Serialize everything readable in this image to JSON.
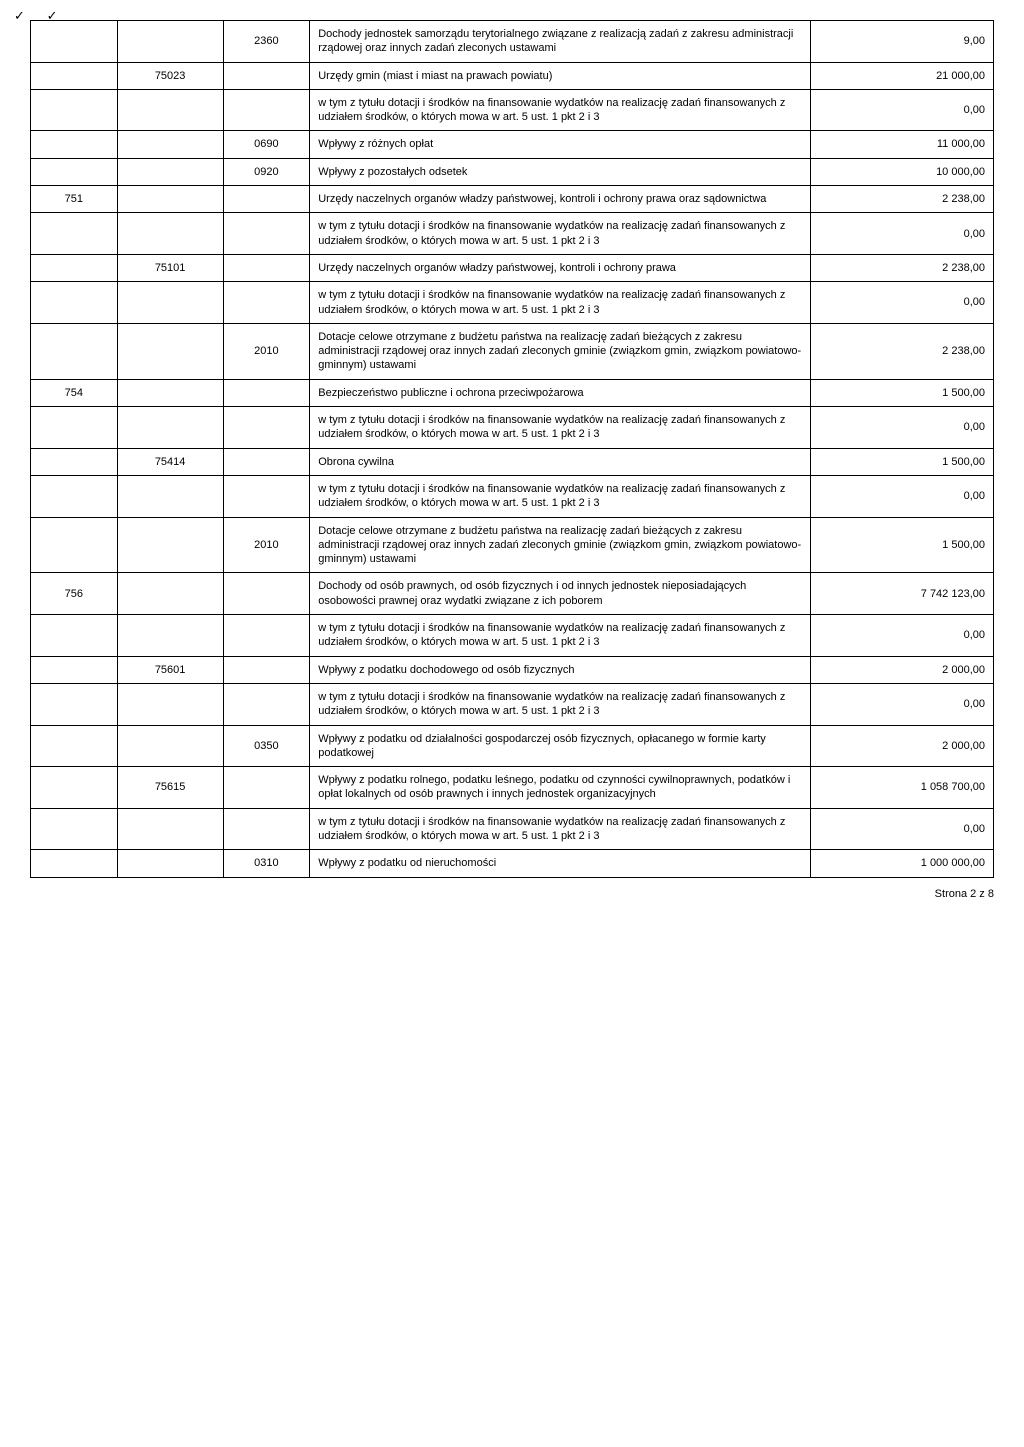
{
  "tick1": "✓",
  "tick2": "✓",
  "rows": [
    {
      "a": "",
      "b": "",
      "c": "2360",
      "d": "Dochody jednostek samorządu terytorialnego związane z realizacją zadań z zakresu administracji rządowej oraz innych zadań zleconych ustawami",
      "e": "9,00"
    },
    {
      "a": "",
      "b": "75023",
      "c": "",
      "d": "Urzędy gmin (miast i miast na prawach powiatu)",
      "e": "21 000,00"
    },
    {
      "a": "",
      "b": "",
      "c": "",
      "d": "w tym z tytułu dotacji i środków na finansowanie wydatków na realizację zadań finansowanych z udziałem środków, o których mowa w art. 5 ust. 1 pkt 2 i 3",
      "e": "0,00"
    },
    {
      "a": "",
      "b": "",
      "c": "0690",
      "d": "Wpływy z różnych opłat",
      "e": "11 000,00"
    },
    {
      "a": "",
      "b": "",
      "c": "0920",
      "d": "Wpływy z pozostałych odsetek",
      "e": "10 000,00"
    },
    {
      "a": "751",
      "b": "",
      "c": "",
      "d": "Urzędy naczelnych organów władzy państwowej, kontroli i ochrony prawa oraz sądownictwa",
      "e": "2 238,00"
    },
    {
      "a": "",
      "b": "",
      "c": "",
      "d": "w tym z tytułu dotacji i środków na finansowanie wydatków na realizację zadań finansowanych z udziałem środków, o których mowa w art. 5 ust. 1 pkt 2 i 3",
      "e": "0,00"
    },
    {
      "a": "",
      "b": "75101",
      "c": "",
      "d": "Urzędy naczelnych organów władzy państwowej, kontroli i ochrony prawa",
      "e": "2 238,00"
    },
    {
      "a": "",
      "b": "",
      "c": "",
      "d": "w tym z tytułu dotacji i środków na finansowanie wydatków na realizację zadań finansowanych z udziałem środków, o których mowa w art. 5 ust. 1 pkt 2 i 3",
      "e": "0,00"
    },
    {
      "a": "",
      "b": "",
      "c": "2010",
      "d": "Dotacje celowe otrzymane z budżetu państwa na realizację zadań bieżących z zakresu administracji rządowej oraz innych zadań zleconych gminie (związkom gmin, związkom powiatowo-gminnym) ustawami",
      "e": "2 238,00"
    },
    {
      "a": "754",
      "b": "",
      "c": "",
      "d": "Bezpieczeństwo publiczne i ochrona przeciwpożarowa",
      "e": "1 500,00"
    },
    {
      "a": "",
      "b": "",
      "c": "",
      "d": "w tym z tytułu dotacji i środków na finansowanie wydatków na realizację zadań finansowanych z udziałem środków, o których mowa w art. 5 ust. 1 pkt 2 i 3",
      "e": "0,00"
    },
    {
      "a": "",
      "b": "75414",
      "c": "",
      "d": "Obrona cywilna",
      "e": "1 500,00"
    },
    {
      "a": "",
      "b": "",
      "c": "",
      "d": "w tym z tytułu dotacji i środków na finansowanie wydatków na realizację zadań finansowanych z udziałem środków, o których mowa w art. 5 ust. 1 pkt 2 i 3",
      "e": "0,00"
    },
    {
      "a": "",
      "b": "",
      "c": "2010",
      "d": "Dotacje celowe otrzymane z budżetu państwa na realizację zadań bieżących z zakresu administracji rządowej oraz innych zadań zleconych gminie (związkom gmin, związkom powiatowo-gminnym) ustawami",
      "e": "1 500,00"
    },
    {
      "a": "756",
      "b": "",
      "c": "",
      "d": "Dochody od osób prawnych, od osób fizycznych i od innych jednostek nieposiadających osobowości prawnej oraz wydatki związane z ich poborem",
      "e": "7 742 123,00"
    },
    {
      "a": "",
      "b": "",
      "c": "",
      "d": "w tym z tytułu dotacji i środków na finansowanie wydatków na realizację zadań finansowanych z udziałem środków, o których mowa w art. 5 ust. 1 pkt 2 i 3",
      "e": "0,00"
    },
    {
      "a": "",
      "b": "75601",
      "c": "",
      "d": "Wpływy z podatku dochodowego od osób fizycznych",
      "e": "2 000,00"
    },
    {
      "a": "",
      "b": "",
      "c": "",
      "d": "w tym z tytułu dotacji i środków na finansowanie wydatków na realizację zadań finansowanych z udziałem środków, o których mowa w art. 5 ust. 1 pkt 2 i 3",
      "e": "0,00"
    },
    {
      "a": "",
      "b": "",
      "c": "0350",
      "d": "Wpływy z podatku od działalności gospodarczej osób fizycznych, opłacanego w formie karty podatkowej",
      "e": "2 000,00"
    },
    {
      "a": "",
      "b": "75615",
      "c": "",
      "d": "Wpływy z podatku rolnego, podatku leśnego, podatku od czynności cywilnoprawnych, podatków i opłat lokalnych od osób prawnych i innych jednostek organizacyjnych",
      "e": "1 058 700,00"
    },
    {
      "a": "",
      "b": "",
      "c": "",
      "d": "w tym z tytułu dotacji i środków na finansowanie wydatków na realizację zadań finansowanych z udziałem środków, o których mowa w art. 5 ust. 1 pkt 2 i 3",
      "e": "0,00"
    },
    {
      "a": "",
      "b": "",
      "c": "0310",
      "d": "Wpływy z podatku od nieruchomości",
      "e": "1 000 000,00"
    }
  ],
  "footer": "Strona 2 z 8"
}
